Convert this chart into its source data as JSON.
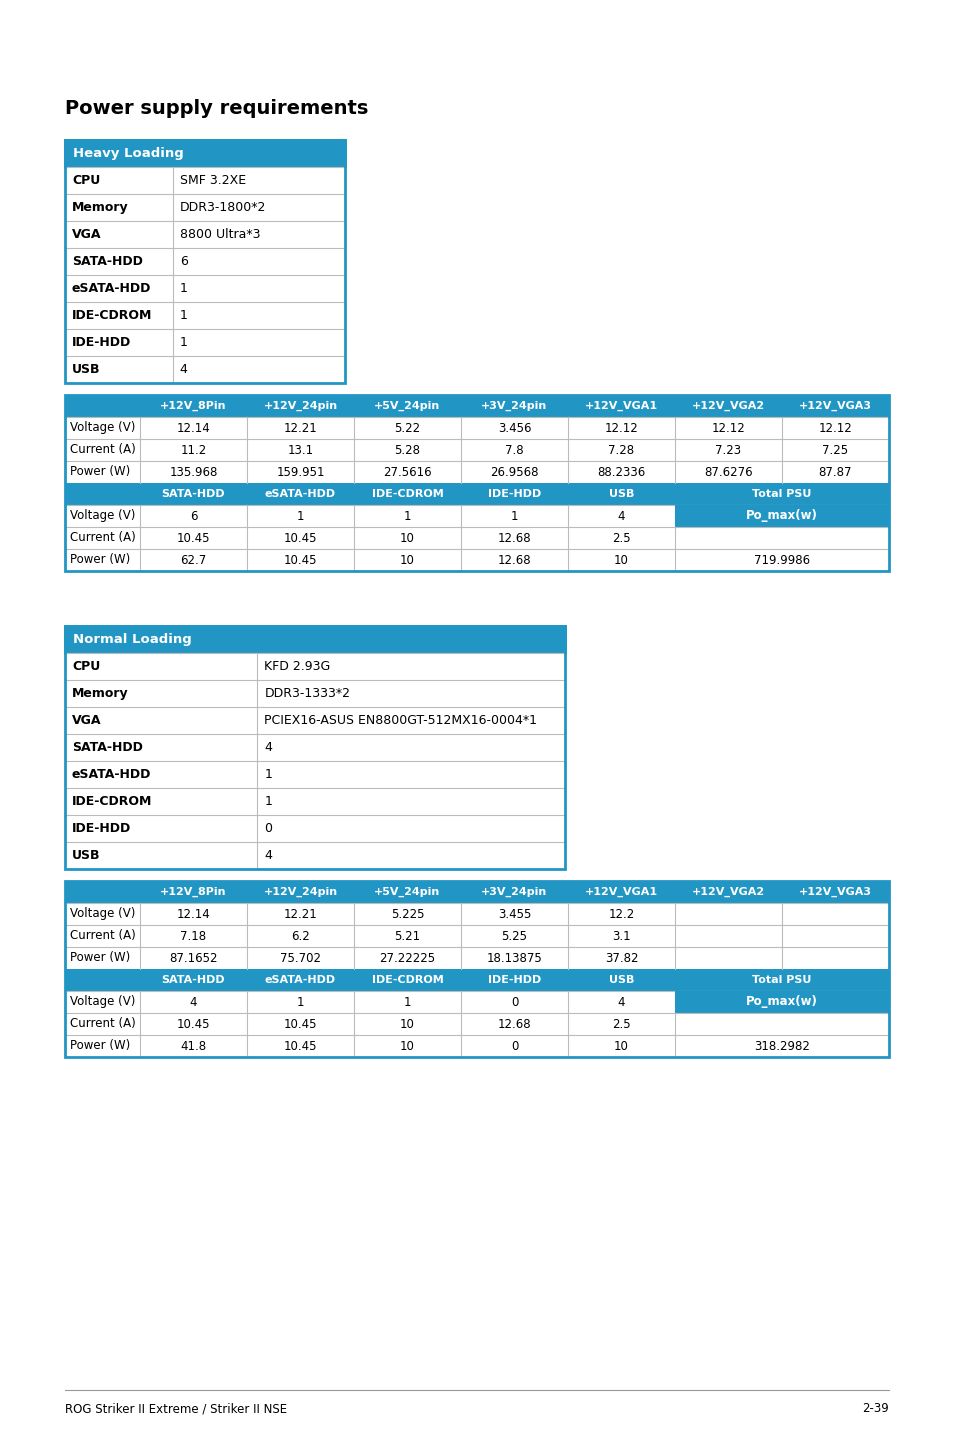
{
  "title": "Power supply requirements",
  "header_color": "#2196c4",
  "border_color": "#2196c4",
  "cell_border_color": "#bbbbbb",
  "text_color": "#000000",
  "white": "#ffffff",
  "footer_text": "ROG Striker II Extreme / Striker II NSE",
  "footer_right": "2-39",
  "heavy_header": "Heavy Loading",
  "heavy_rows": [
    [
      "CPU",
      "SMF 3.2XE"
    ],
    [
      "Memory",
      "DDR3-1800*2"
    ],
    [
      "VGA",
      "8800 Ultra*3"
    ],
    [
      "SATA-HDD",
      "6"
    ],
    [
      "eSATA-HDD",
      "1"
    ],
    [
      "IDE-CDROM",
      "1"
    ],
    [
      "IDE-HDD",
      "1"
    ],
    [
      "USB",
      "4"
    ]
  ],
  "heavy_t1_header": [
    "",
    "+12V_8Pin",
    "+12V_24pin",
    "+5V_24pin",
    "+3V_24pin",
    "+12V_VGA1",
    "+12V_VGA2",
    "+12V_VGA3"
  ],
  "heavy_t1_rows": [
    [
      "Voltage (V)",
      "12.14",
      "12.21",
      "5.22",
      "3.456",
      "12.12",
      "12.12",
      "12.12"
    ],
    [
      "Current (A)",
      "11.2",
      "13.1",
      "5.28",
      "7.8",
      "7.28",
      "7.23",
      "7.25"
    ],
    [
      "Power (W)",
      "135.968",
      "159.951",
      "27.5616",
      "26.9568",
      "88.2336",
      "87.6276",
      "87.87"
    ]
  ],
  "heavy_t2_header": [
    "",
    "SATA-HDD",
    "eSATA-HDD",
    "IDE-CDROM",
    "IDE-HDD",
    "USB",
    "Total PSU"
  ],
  "heavy_t2_rows": [
    [
      "Voltage (V)",
      "6",
      "1",
      "1",
      "1",
      "4"
    ],
    [
      "Current (A)",
      "10.45",
      "10.45",
      "10",
      "12.68",
      "2.5"
    ],
    [
      "Power (W)",
      "62.7",
      "10.45",
      "10",
      "12.68",
      "10"
    ]
  ],
  "heavy_total_col": [
    "Po_max(w)",
    "",
    "719.9986"
  ],
  "normal_header": "Normal Loading",
  "normal_rows": [
    [
      "CPU",
      "KFD 2.93G"
    ],
    [
      "Memory",
      "DDR3-1333*2"
    ],
    [
      "VGA",
      "PCIEX16-ASUS EN8800GT-512MX16-0004*1"
    ],
    [
      "SATA-HDD",
      "4"
    ],
    [
      "eSATA-HDD",
      "1"
    ],
    [
      "IDE-CDROM",
      "1"
    ],
    [
      "IDE-HDD",
      "0"
    ],
    [
      "USB",
      "4"
    ]
  ],
  "normal_t1_header": [
    "",
    "+12V_8Pin",
    "+12V_24pin",
    "+5V_24pin",
    "+3V_24pin",
    "+12V_VGA1",
    "+12V_VGA2",
    "+12V_VGA3"
  ],
  "normal_t1_rows": [
    [
      "Voltage (V)",
      "12.14",
      "12.21",
      "5.225",
      "3.455",
      "12.2",
      "",
      ""
    ],
    [
      "Current (A)",
      "7.18",
      "6.2",
      "5.21",
      "5.25",
      "3.1",
      "",
      ""
    ],
    [
      "Power (W)",
      "87.1652",
      "75.702",
      "27.22225",
      "18.13875",
      "37.82",
      "",
      ""
    ]
  ],
  "normal_t2_header": [
    "",
    "SATA-HDD",
    "eSATA-HDD",
    "IDE-CDROM",
    "IDE-HDD",
    "USB",
    "Total PSU"
  ],
  "normal_t2_rows": [
    [
      "Voltage (V)",
      "4",
      "1",
      "1",
      "0",
      "4"
    ],
    [
      "Current (A)",
      "10.45",
      "10.45",
      "10",
      "12.68",
      "2.5"
    ],
    [
      "Power (W)",
      "41.8",
      "10.45",
      "10",
      "0",
      "10"
    ]
  ],
  "normal_total_col": [
    "Po_max(w)",
    "",
    "318.2982"
  ]
}
